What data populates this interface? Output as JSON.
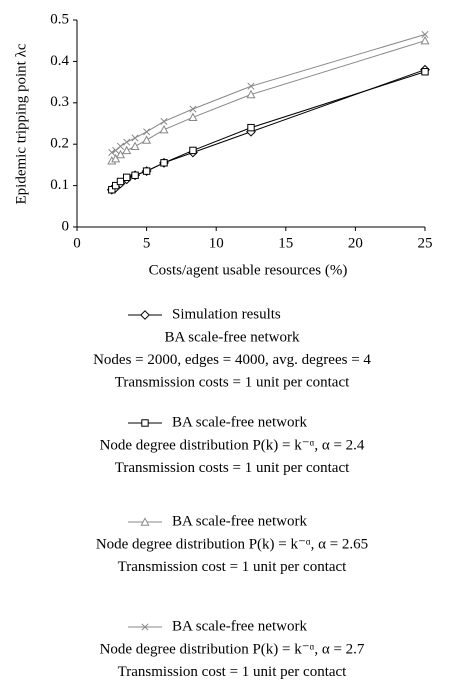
{
  "chart_data": {
    "type": "line",
    "xlabel": "Costs/agent usable resources (%)",
    "ylabel": "Epidemic tripping point λc",
    "x": [
      2.5,
      2.78,
      3.125,
      3.57,
      4.17,
      5,
      6.25,
      8.33,
      12.5,
      25
    ],
    "series": [
      {
        "name": "Simulation results",
        "color": "#000000",
        "marker": "diamond",
        "description": [
          "BA scale-free network",
          "Nodes = 2000, edges = 4000, avg. degrees = 4",
          "Transmission costs = 1 unit per contact"
        ],
        "values": [
          0.09,
          0.095,
          0.105,
          0.115,
          0.125,
          0.135,
          0.155,
          0.18,
          0.23,
          0.38
        ]
      },
      {
        "name": "BA scale-free network",
        "color": "#000000",
        "marker": "square",
        "description": [
          "Node degree distribution P(k) = k⁻ᵅ, α = 2.4",
          "Transmission costs = 1 unit per contact"
        ],
        "values": [
          0.09,
          0.1,
          0.11,
          0.12,
          0.125,
          0.135,
          0.155,
          0.185,
          0.24,
          0.375
        ]
      },
      {
        "name": "BA scale-free network",
        "color": "#888888",
        "marker": "triangle",
        "description": [
          "Node degree distribution P(k) = k⁻ᵅ, α = 2.65",
          "Transmission cost = 1 unit per contact"
        ],
        "values": [
          0.16,
          0.165,
          0.175,
          0.185,
          0.195,
          0.21,
          0.235,
          0.265,
          0.32,
          0.45
        ]
      },
      {
        "name": "BA scale-free network",
        "color": "#888888",
        "marker": "cross",
        "description": [
          "Node degree distribution P(k) = k⁻ᵅ, α = 2.7",
          "Transmission cost = 1 unit per contact"
        ],
        "values": [
          0.18,
          0.185,
          0.195,
          0.205,
          0.215,
          0.23,
          0.255,
          0.285,
          0.34,
          0.465
        ]
      }
    ],
    "xlim": [
      0,
      25
    ],
    "xticks": [
      0,
      5,
      10,
      15,
      20,
      25
    ],
    "ylim": [
      0,
      0.5
    ],
    "yticks": [
      0,
      0.1,
      0.2,
      0.3,
      0.4,
      0.5
    ],
    "grid": false
  }
}
